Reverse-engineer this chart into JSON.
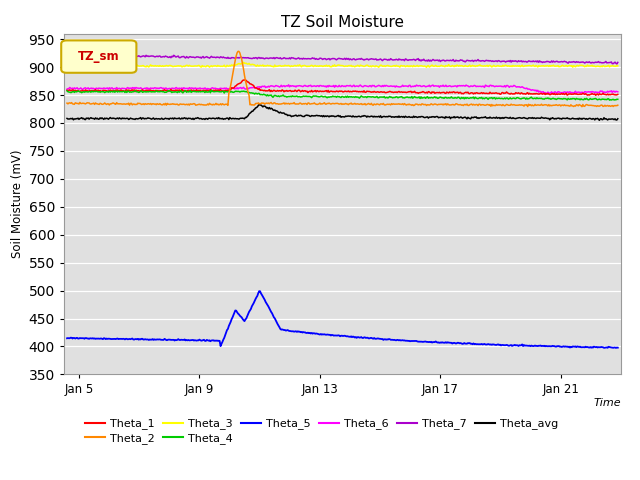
{
  "title": "TZ Soil Moisture",
  "ylabel": "Soil Moisture (mV)",
  "xlabel": "Time",
  "ylim": [
    350,
    960
  ],
  "yticks": [
    350,
    400,
    450,
    500,
    550,
    600,
    650,
    700,
    750,
    800,
    850,
    900,
    950
  ],
  "xlim_days": [
    4.5,
    23.0
  ],
  "bg_color": "#e0e0e0",
  "fig_bg": "#ffffff",
  "legend_label": "TZ_sm",
  "legend_bg": "#ffffcc",
  "legend_border": "#ccaa00",
  "series_colors": {
    "Theta_1": "#ff0000",
    "Theta_2": "#ff8800",
    "Theta_3": "#ffff00",
    "Theta_4": "#00cc00",
    "Theta_5": "#0000ff",
    "Theta_6": "#ff00ff",
    "Theta_7": "#aa00cc",
    "Theta_avg": "#000000"
  },
  "x_tick_labels": [
    "Jan 5",
    "Jan 9",
    "Jan 13",
    "Jan 17",
    "Jan 21"
  ],
  "x_tick_days": [
    5,
    9,
    13,
    17,
    21
  ],
  "event_day": 10.5
}
